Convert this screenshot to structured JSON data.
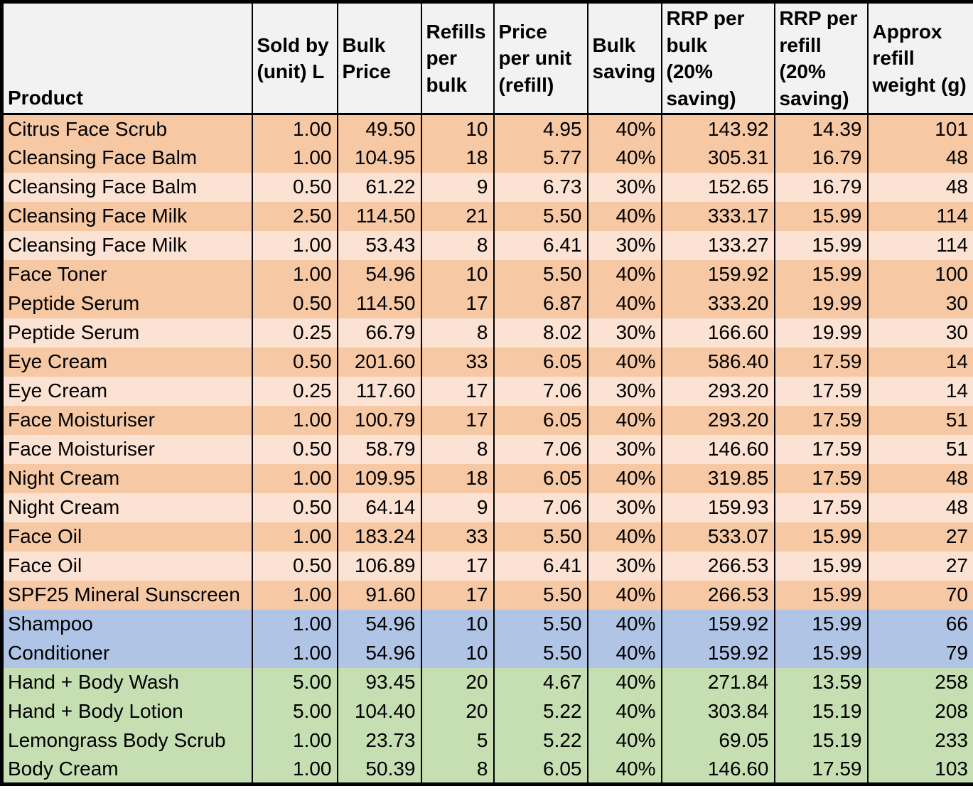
{
  "colors": {
    "header_bg": "#F2F2F2",
    "row_orange_dark": "#F6C8A4",
    "row_orange_light": "#FCE2D3",
    "row_blue": "#B0C4E6",
    "row_green": "#C5DFB2",
    "border": "#000000"
  },
  "table": {
    "columns": [
      {
        "id": "product",
        "label": "Product"
      },
      {
        "id": "sold-by-unit",
        "label": "Sold by\n(unit) L"
      },
      {
        "id": "bulk-price",
        "label": "Bulk\nPrice"
      },
      {
        "id": "refills-per-bulk",
        "label": "Refills\nper\nbulk"
      },
      {
        "id": "price-per-unit",
        "label": "Price\nper unit\n(refill)"
      },
      {
        "id": "bulk-saving",
        "label": "Bulk\nsaving"
      },
      {
        "id": "rrp-per-bulk",
        "label": "RRP per\nbulk\n(20%\nsaving)"
      },
      {
        "id": "rrp-per-refill",
        "label": "RRP per\nrefill\n(20%\nsaving)"
      },
      {
        "id": "refill-weight",
        "label": "Approx\nrefill\nweight (g)"
      }
    ],
    "rows": [
      {
        "tint": "orange-dark",
        "cells": [
          "Citrus Face Scrub",
          "1.00",
          "49.50",
          "10",
          "4.95",
          "40%",
          "143.92",
          "14.39",
          "101"
        ]
      },
      {
        "tint": "orange-dark",
        "cells": [
          "Cleansing Face Balm",
          "1.00",
          "104.95",
          "18",
          "5.77",
          "40%",
          "305.31",
          "16.79",
          "48"
        ]
      },
      {
        "tint": "orange-light",
        "cells": [
          "Cleansing Face Balm",
          "0.50",
          "61.22",
          "9",
          "6.73",
          "30%",
          "152.65",
          "16.79",
          "48"
        ]
      },
      {
        "tint": "orange-dark",
        "cells": [
          "Cleansing Face Milk",
          "2.50",
          "114.50",
          "21",
          "5.50",
          "40%",
          "333.17",
          "15.99",
          "114"
        ]
      },
      {
        "tint": "orange-light",
        "cells": [
          "Cleansing Face Milk",
          "1.00",
          "53.43",
          "8",
          "6.41",
          "30%",
          "133.27",
          "15.99",
          "114"
        ]
      },
      {
        "tint": "orange-dark",
        "cells": [
          "Face Toner",
          "1.00",
          "54.96",
          "10",
          "5.50",
          "40%",
          "159.92",
          "15.99",
          "100"
        ]
      },
      {
        "tint": "orange-dark",
        "cells": [
          "Peptide Serum",
          "0.50",
          "114.50",
          "17",
          "6.87",
          "40%",
          "333.20",
          "19.99",
          "30"
        ]
      },
      {
        "tint": "orange-light",
        "cells": [
          "Peptide Serum",
          "0.25",
          "66.79",
          "8",
          "8.02",
          "30%",
          "166.60",
          "19.99",
          "30"
        ]
      },
      {
        "tint": "orange-dark",
        "cells": [
          "Eye Cream",
          "0.50",
          "201.60",
          "33",
          "6.05",
          "40%",
          "586.40",
          "17.59",
          "14"
        ]
      },
      {
        "tint": "orange-light",
        "cells": [
          "Eye Cream",
          "0.25",
          "117.60",
          "17",
          "7.06",
          "30%",
          "293.20",
          "17.59",
          "14"
        ]
      },
      {
        "tint": "orange-dark",
        "cells": [
          "Face Moisturiser",
          "1.00",
          "100.79",
          "17",
          "6.05",
          "40%",
          "293.20",
          "17.59",
          "51"
        ]
      },
      {
        "tint": "orange-light",
        "cells": [
          "Face Moisturiser",
          "0.50",
          "58.79",
          "8",
          "7.06",
          "30%",
          "146.60",
          "17.59",
          "51"
        ]
      },
      {
        "tint": "orange-dark",
        "cells": [
          "Night Cream",
          "1.00",
          "109.95",
          "18",
          "6.05",
          "40%",
          "319.85",
          "17.59",
          "48"
        ]
      },
      {
        "tint": "orange-light",
        "cells": [
          "Night Cream",
          "0.50",
          "64.14",
          "9",
          "7.06",
          "30%",
          "159.93",
          "17.59",
          "48"
        ]
      },
      {
        "tint": "orange-dark",
        "cells": [
          "Face Oil",
          "1.00",
          "183.24",
          "33",
          "5.50",
          "40%",
          "533.07",
          "15.99",
          "27"
        ]
      },
      {
        "tint": "orange-light",
        "cells": [
          "Face Oil",
          "0.50",
          "106.89",
          "17",
          "6.41",
          "30%",
          "266.53",
          "15.99",
          "27"
        ]
      },
      {
        "tint": "orange-dark",
        "cells": [
          "SPF25 Mineral Sunscreen",
          "1.00",
          "91.60",
          "17",
          "5.50",
          "40%",
          "266.53",
          "15.99",
          "70"
        ]
      },
      {
        "tint": "blue",
        "cells": [
          "Shampoo",
          "1.00",
          "54.96",
          "10",
          "5.50",
          "40%",
          "159.92",
          "15.99",
          "66"
        ]
      },
      {
        "tint": "blue",
        "cells": [
          "Conditioner",
          "1.00",
          "54.96",
          "10",
          "5.50",
          "40%",
          "159.92",
          "15.99",
          "79"
        ]
      },
      {
        "tint": "green",
        "cells": [
          "Hand + Body Wash",
          "5.00",
          "93.45",
          "20",
          "4.67",
          "40%",
          "271.84",
          "13.59",
          "258"
        ]
      },
      {
        "tint": "green",
        "cells": [
          "Hand + Body Lotion",
          "5.00",
          "104.40",
          "20",
          "5.22",
          "40%",
          "303.84",
          "15.19",
          "208"
        ]
      },
      {
        "tint": "green",
        "cells": [
          "Lemongrass Body Scrub",
          "1.00",
          "23.73",
          "5",
          "5.22",
          "40%",
          "69.05",
          "15.19",
          "233"
        ]
      },
      {
        "tint": "green",
        "cells": [
          "Body Cream",
          "1.00",
          "50.39",
          "8",
          "6.05",
          "40%",
          "146.60",
          "17.59",
          "103"
        ]
      }
    ]
  }
}
